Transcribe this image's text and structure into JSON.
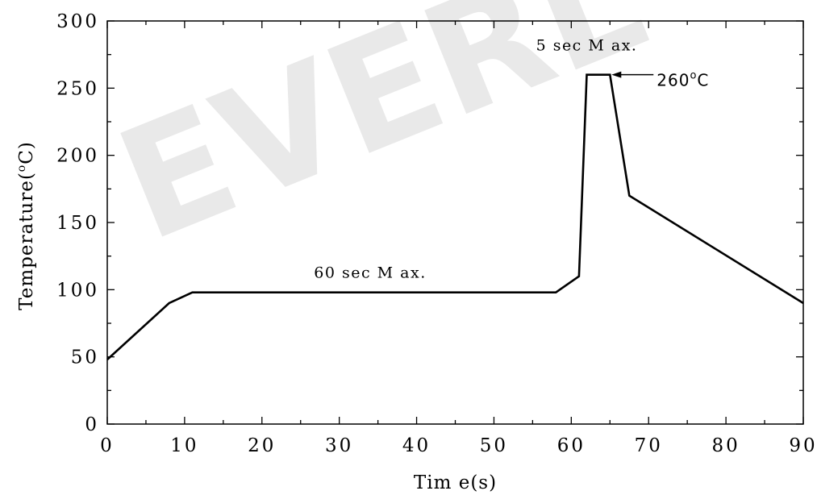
{
  "watermark": "EVERL",
  "chart_data": {
    "type": "line",
    "xlabel": "Tim e(s)",
    "ylabel": "Temperature(°C)",
    "ylabel_main": "Temperature(",
    "ylabel_sup": "o",
    "ylabel_end": "C)",
    "xlim": [
      0,
      90
    ],
    "ylim": [
      0,
      300
    ],
    "xticks": [
      0,
      10,
      20,
      30,
      40,
      50,
      60,
      70,
      80,
      90
    ],
    "yticks": [
      0,
      50,
      100,
      150,
      200,
      250,
      300
    ],
    "grid": false,
    "series": [
      {
        "x": [
          0,
          8,
          11,
          58,
          61,
          62,
          65,
          67.5,
          90
        ],
        "y": [
          48,
          90,
          98,
          98,
          110,
          260,
          260,
          170,
          90
        ]
      }
    ],
    "annotations": {
      "soak": {
        "text": "60 sec M ax.",
        "x": 34,
        "y": 109
      },
      "peak_time": {
        "text": "5 sec M ax.",
        "x": 62,
        "y": 278
      },
      "peak_temp": {
        "text_main": "260",
        "text_sup": "o",
        "text_end": "C",
        "x": 67.5,
        "y": 260
      }
    }
  }
}
